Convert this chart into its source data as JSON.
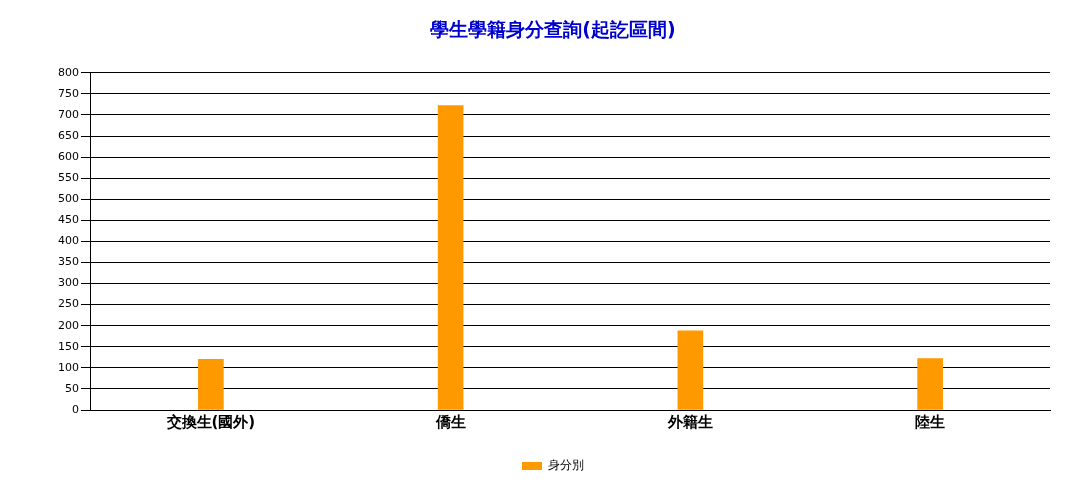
{
  "chart_data": {
    "type": "bar",
    "title": "學生學籍身分查詢(起訖區間)",
    "categories": [
      "交換生(國外)",
      "僑生",
      "外籍生",
      "陸生"
    ],
    "series": [
      {
        "name": "身分別",
        "color": "#ff9900",
        "values": [
          120,
          722,
          188,
          122
        ]
      }
    ],
    "ylim": [
      0,
      800
    ],
    "yticks": [
      0,
      50,
      100,
      150,
      200,
      250,
      300,
      350,
      400,
      450,
      500,
      550,
      600,
      650,
      700,
      750,
      800
    ],
    "grid": "y",
    "legend": "bottom"
  }
}
